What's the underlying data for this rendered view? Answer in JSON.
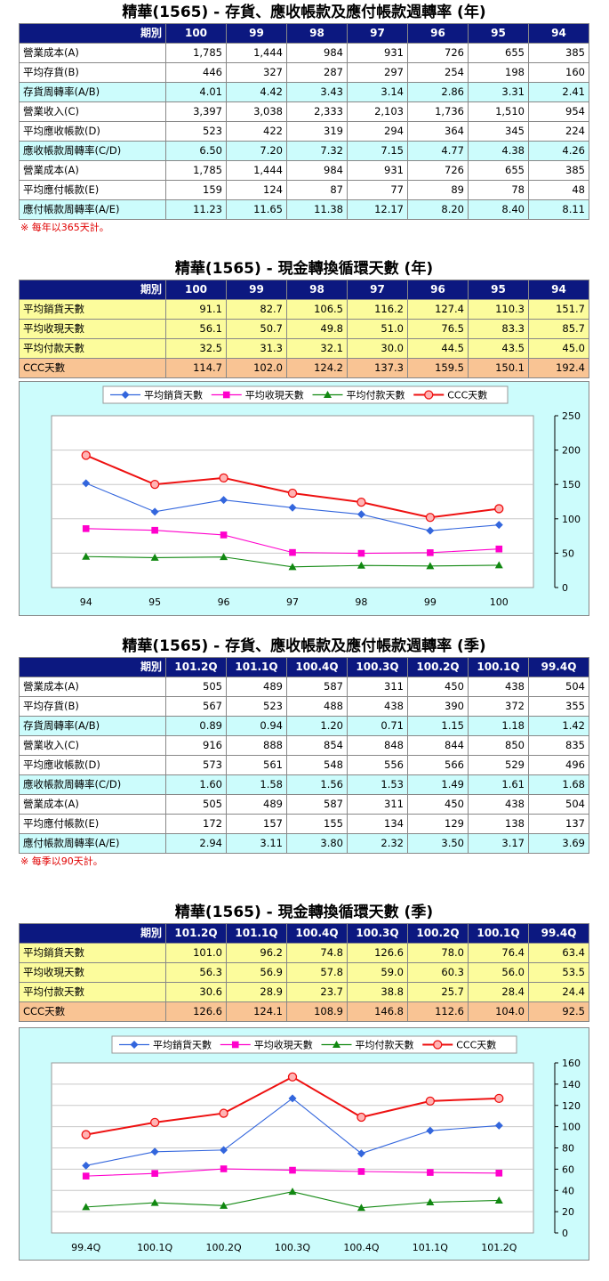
{
  "colors": {
    "header_bg": "#0c1880",
    "cyan": "#ccfcfc",
    "yellow": "#fcfc9c",
    "orange": "#f9c494",
    "s1": "#3366dd",
    "s2": "#ff00cc",
    "s3": "#118811",
    "s4": "#ee1111"
  },
  "icons": [
    "diamond-marker",
    "square-marker",
    "triangle-marker",
    "circle-marker"
  ],
  "sec1": {
    "title": "精華(1565) -  存貨、應收帳款及應付帳款週轉率 (年)",
    "corner": "期別",
    "cols": [
      "100",
      "99",
      "98",
      "97",
      "96",
      "95",
      "94"
    ],
    "rows": [
      {
        "label": "營業成本(A)",
        "cls": "w",
        "values": [
          "1,785",
          "1,444",
          "984",
          "931",
          "726",
          "655",
          "385"
        ]
      },
      {
        "label": "平均存貨(B)",
        "cls": "w",
        "values": [
          "446",
          "327",
          "287",
          "297",
          "254",
          "198",
          "160"
        ]
      },
      {
        "label": "存貨周轉率(A/B)",
        "cls": "c",
        "values": [
          "4.01",
          "4.42",
          "3.43",
          "3.14",
          "2.86",
          "3.31",
          "2.41"
        ]
      },
      {
        "label": "營業收入(C)",
        "cls": "w",
        "values": [
          "3,397",
          "3,038",
          "2,333",
          "2,103",
          "1,736",
          "1,510",
          "954"
        ]
      },
      {
        "label": "平均應收帳款(D)",
        "cls": "w",
        "values": [
          "523",
          "422",
          "319",
          "294",
          "364",
          "345",
          "224"
        ]
      },
      {
        "label": "應收帳款周轉率(C/D)",
        "cls": "c",
        "values": [
          "6.50",
          "7.20",
          "7.32",
          "7.15",
          "4.77",
          "4.38",
          "4.26"
        ]
      },
      {
        "label": "營業成本(A)",
        "cls": "w",
        "values": [
          "1,785",
          "1,444",
          "984",
          "931",
          "726",
          "655",
          "385"
        ]
      },
      {
        "label": "平均應付帳款(E)",
        "cls": "w",
        "values": [
          "159",
          "124",
          "87",
          "77",
          "89",
          "78",
          "48"
        ]
      },
      {
        "label": "應付帳款周轉率(A/E)",
        "cls": "c",
        "values": [
          "11.23",
          "11.65",
          "11.38",
          "12.17",
          "8.20",
          "8.40",
          "8.11"
        ]
      }
    ],
    "note": "※ 每年以365天計。"
  },
  "sec2": {
    "title": "精華(1565) -  現金轉換循環天數 (年)",
    "corner": "期別",
    "cols": [
      "100",
      "99",
      "98",
      "97",
      "96",
      "95",
      "94"
    ],
    "rows": [
      {
        "label": "平均銷貨天數",
        "cls": "y",
        "values": [
          "91.1",
          "82.7",
          "106.5",
          "116.2",
          "127.4",
          "110.3",
          "151.7"
        ]
      },
      {
        "label": "平均收現天數",
        "cls": "y",
        "values": [
          "56.1",
          "50.7",
          "49.8",
          "51.0",
          "76.5",
          "83.3",
          "85.7"
        ]
      },
      {
        "label": "平均付款天數",
        "cls": "y",
        "values": [
          "32.5",
          "31.3",
          "32.1",
          "30.0",
          "44.5",
          "43.5",
          "45.0"
        ]
      },
      {
        "label": "CCC天數",
        "cls": "o",
        "values": [
          "114.7",
          "102.0",
          "124.2",
          "137.3",
          "159.5",
          "150.1",
          "192.4"
        ]
      }
    ]
  },
  "sec3": {
    "title": "精華(1565) -  存貨、應收帳款及應付帳款週轉率 (季)",
    "corner": "期別",
    "cols": [
      "101.2Q",
      "101.1Q",
      "100.4Q",
      "100.3Q",
      "100.2Q",
      "100.1Q",
      "99.4Q"
    ],
    "rows": [
      {
        "label": "營業成本(A)",
        "cls": "w",
        "values": [
          "505",
          "489",
          "587",
          "311",
          "450",
          "438",
          "504"
        ]
      },
      {
        "label": "平均存貨(B)",
        "cls": "w",
        "values": [
          "567",
          "523",
          "488",
          "438",
          "390",
          "372",
          "355"
        ]
      },
      {
        "label": "存貨周轉率(A/B)",
        "cls": "c",
        "values": [
          "0.89",
          "0.94",
          "1.20",
          "0.71",
          "1.15",
          "1.18",
          "1.42"
        ]
      },
      {
        "label": "營業收入(C)",
        "cls": "w",
        "values": [
          "916",
          "888",
          "854",
          "848",
          "844",
          "850",
          "835"
        ]
      },
      {
        "label": "平均應收帳款(D)",
        "cls": "w",
        "values": [
          "573",
          "561",
          "548",
          "556",
          "566",
          "529",
          "496"
        ]
      },
      {
        "label": "應收帳款周轉率(C/D)",
        "cls": "c",
        "values": [
          "1.60",
          "1.58",
          "1.56",
          "1.53",
          "1.49",
          "1.61",
          "1.68"
        ]
      },
      {
        "label": "營業成本(A)",
        "cls": "w",
        "values": [
          "505",
          "489",
          "587",
          "311",
          "450",
          "438",
          "504"
        ]
      },
      {
        "label": "平均應付帳款(E)",
        "cls": "w",
        "values": [
          "172",
          "157",
          "155",
          "134",
          "129",
          "138",
          "137"
        ]
      },
      {
        "label": "應付帳款周轉率(A/E)",
        "cls": "c",
        "values": [
          "2.94",
          "3.11",
          "3.80",
          "2.32",
          "3.50",
          "3.17",
          "3.69"
        ]
      }
    ],
    "note": "※ 每季以90天計。"
  },
  "sec4": {
    "title": "精華(1565) -  現金轉換循環天數 (季)",
    "corner": "期別",
    "cols": [
      "101.2Q",
      "101.1Q",
      "100.4Q",
      "100.3Q",
      "100.2Q",
      "100.1Q",
      "99.4Q"
    ],
    "rows": [
      {
        "label": "平均銷貨天數",
        "cls": "y",
        "values": [
          "101.0",
          "96.2",
          "74.8",
          "126.6",
          "78.0",
          "76.4",
          "63.4"
        ]
      },
      {
        "label": "平均收現天數",
        "cls": "y",
        "values": [
          "56.3",
          "56.9",
          "57.8",
          "59.0",
          "60.3",
          "56.0",
          "53.5"
        ]
      },
      {
        "label": "平均付款天數",
        "cls": "y",
        "values": [
          "30.6",
          "28.9",
          "23.7",
          "38.8",
          "25.7",
          "28.4",
          "24.4"
        ]
      },
      {
        "label": "CCC天數",
        "cls": "o",
        "values": [
          "126.6",
          "124.1",
          "108.9",
          "146.8",
          "112.6",
          "104.0",
          "92.5"
        ]
      }
    ]
  },
  "chart_data": [
    {
      "type": "line",
      "categories": [
        "94",
        "95",
        "96",
        "97",
        "98",
        "99",
        "100"
      ],
      "ylim": [
        0,
        250
      ],
      "yticks": [
        0,
        50,
        100,
        150,
        200,
        250
      ],
      "grid": true,
      "legend": "top",
      "series": [
        {
          "name": "平均銷貨天數",
          "values": [
            151.7,
            110.3,
            127.4,
            116.2,
            106.5,
            82.7,
            91.1
          ]
        },
        {
          "name": "平均收現天數",
          "values": [
            85.7,
            83.3,
            76.5,
            51.0,
            49.8,
            50.7,
            56.1
          ]
        },
        {
          "name": "平均付款天數",
          "values": [
            45.0,
            43.5,
            44.5,
            30.0,
            32.1,
            31.3,
            32.5
          ]
        },
        {
          "name": "CCC天數",
          "values": [
            192.4,
            150.1,
            159.5,
            137.3,
            124.2,
            102.0,
            114.7
          ]
        }
      ]
    },
    {
      "type": "line",
      "categories": [
        "99.4Q",
        "100.1Q",
        "100.2Q",
        "100.3Q",
        "100.4Q",
        "101.1Q",
        "101.2Q"
      ],
      "ylim": [
        0,
        160
      ],
      "yticks": [
        0,
        20,
        40,
        60,
        80,
        100,
        120,
        140,
        160
      ],
      "grid": true,
      "legend": "top",
      "series": [
        {
          "name": "平均銷貨天數",
          "values": [
            63.4,
            76.4,
            78.0,
            126.6,
            74.8,
            96.2,
            101.0
          ]
        },
        {
          "name": "平均收現天數",
          "values": [
            53.5,
            56.0,
            60.3,
            59.0,
            57.8,
            56.9,
            56.3
          ]
        },
        {
          "name": "平均付款天數",
          "values": [
            24.4,
            28.4,
            25.7,
            38.8,
            23.7,
            28.9,
            30.6
          ]
        },
        {
          "name": "CCC天數",
          "values": [
            92.5,
            104.0,
            112.6,
            146.8,
            108.9,
            124.1,
            126.6
          ]
        }
      ]
    }
  ]
}
